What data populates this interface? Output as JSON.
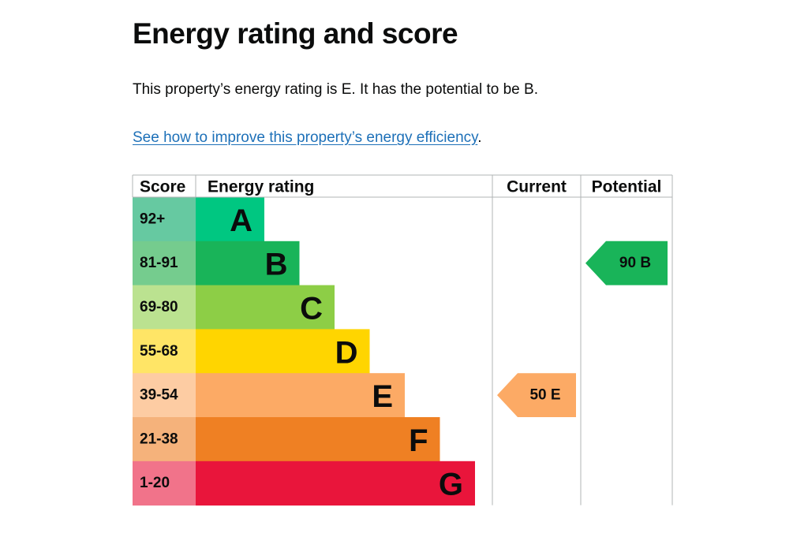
{
  "page": {
    "heading": "Energy rating and score",
    "summary": "This property’s energy rating is E. It has the potential to be B.",
    "link_text": "See how to improve this property’s energy efficiency",
    "link_suffix": "."
  },
  "colors": {
    "link": "#1d70b8",
    "text": "#0b0c0c",
    "grid": "#b1b4b6"
  },
  "chart_data": {
    "type": "table",
    "headers": {
      "score": "Score",
      "rating": "Energy rating",
      "current": "Current",
      "potential": "Potential"
    },
    "bands": [
      {
        "letter": "A",
        "range": "92+",
        "band_color": "#00c781",
        "score_color": "#66c9a1"
      },
      {
        "letter": "B",
        "range": "81-91",
        "band_color": "#19b459",
        "score_color": "#75cc8e"
      },
      {
        "letter": "C",
        "range": "69-80",
        "band_color": "#8dce46",
        "score_color": "#bbe290"
      },
      {
        "letter": "D",
        "range": "55-68",
        "band_color": "#ffd500",
        "score_color": "#ffe566"
      },
      {
        "letter": "E",
        "range": "39-54",
        "band_color": "#fcaa65",
        "score_color": "#fdcca3"
      },
      {
        "letter": "F",
        "range": "21-38",
        "band_color": "#ef8023",
        "score_color": "#f5b27b"
      },
      {
        "letter": "G",
        "range": "1-20",
        "band_color": "#e9153b",
        "score_color": "#f1738a"
      }
    ],
    "current": {
      "score": 50,
      "letter": "E",
      "label": "50  E",
      "color": "#fcaa65"
    },
    "potential": {
      "score": 90,
      "letter": "B",
      "label": "90  B",
      "color": "#19b459"
    }
  }
}
